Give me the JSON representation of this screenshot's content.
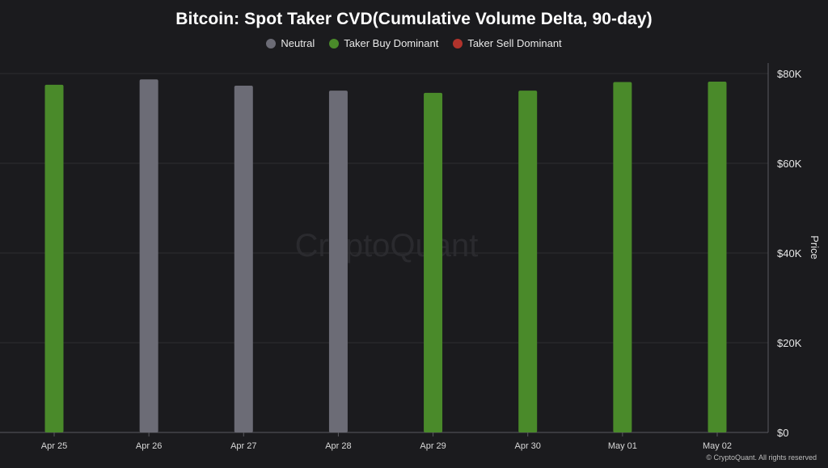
{
  "colors": {
    "Neutral": "#6c6c76",
    "Taker Buy Dominant": "#4a8a2a",
    "Taker Sell Dominant": "#b1332c",
    "grid": "#2c2c30",
    "axis": "#5a5a60"
  },
  "footer": "© CryptoQuant. All rights reserved",
  "watermark": "CryptoQuant",
  "chart_data": {
    "type": "bar",
    "title": "Bitcoin: Spot Taker CVD(Cumulative Volume Delta, 90-day)",
    "ylabel": "Price",
    "ylim": [
      0,
      80000
    ],
    "y_axis_position": "right",
    "yticks": [
      0,
      20000,
      40000,
      60000,
      80000
    ],
    "ytick_labels": [
      "$0",
      "$20K",
      "$40K",
      "$60K",
      "$80K"
    ],
    "grid": true,
    "legend_position": "top-center",
    "legend": [
      "Neutral",
      "Taker Buy Dominant",
      "Taker Sell Dominant"
    ],
    "categories": [
      "Apr 25",
      "Apr 26",
      "Apr 27",
      "Apr 28",
      "Apr 29",
      "Apr 30",
      "May 01",
      "May 02"
    ],
    "values": [
      77500,
      78700,
      77300,
      76200,
      75700,
      76200,
      78100,
      78200
    ],
    "states": [
      "Taker Buy Dominant",
      "Neutral",
      "Neutral",
      "Neutral",
      "Taker Buy Dominant",
      "Taker Buy Dominant",
      "Taker Buy Dominant",
      "Taker Buy Dominant"
    ]
  }
}
